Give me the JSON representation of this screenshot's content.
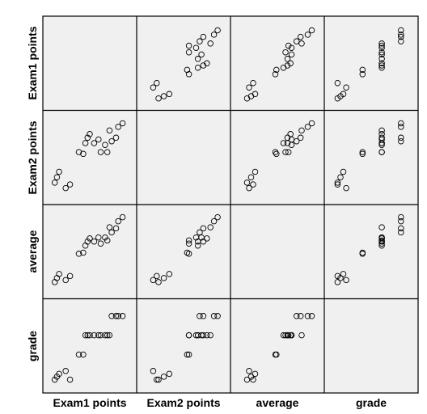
{
  "chart_data": {
    "type": "scatter",
    "variables": [
      "Exam1 points",
      "Exam2 points",
      "average",
      "grade"
    ],
    "records": [
      {
        "Exam1 points": 65,
        "Exam2 points": 60,
        "average": 62.5,
        "grade": 0.7
      },
      {
        "Exam1 points": 66,
        "Exam2 points": 63,
        "average": 64.5,
        "grade": 0.85
      },
      {
        "Exam1 points": 67,
        "Exam2 points": 66,
        "average": 66.5,
        "grade": 1.0
      },
      {
        "Exam1 points": 70,
        "Exam2 points": 57,
        "average": 63.5,
        "grade": 1.15
      },
      {
        "Exam1 points": 72,
        "Exam2 points": 59,
        "average": 65.5,
        "grade": 0.7
      },
      {
        "Exam1 points": 76,
        "Exam2 points": 77,
        "average": 76.5,
        "grade": 2.0
      },
      {
        "Exam1 points": 78,
        "Exam2 points": 76,
        "average": 77,
        "grade": 2.0
      },
      {
        "Exam1 points": 79,
        "Exam2 points": 82,
        "average": 80.5,
        "grade": 3.0
      },
      {
        "Exam1 points": 80,
        "Exam2 points": 85,
        "average": 82.5,
        "grade": 3.0
      },
      {
        "Exam1 points": 81,
        "Exam2 points": 87,
        "average": 84,
        "grade": 3.0
      },
      {
        "Exam1 points": 83,
        "Exam2 points": 82,
        "average": 82.5,
        "grade": 3.0
      },
      {
        "Exam1 points": 85,
        "Exam2 points": 84,
        "average": 84.5,
        "grade": 3.0
      },
      {
        "Exam1 points": 86,
        "Exam2 points": 77,
        "average": 81.5,
        "grade": 3.0
      },
      {
        "Exam1 points": 88,
        "Exam2 points": 81,
        "average": 84.5,
        "grade": 3.0
      },
      {
        "Exam1 points": 89,
        "Exam2 points": 77,
        "average": 83,
        "grade": 3.0
      },
      {
        "Exam1 points": 90,
        "Exam2 points": 89,
        "average": 89.5,
        "grade": 3.0
      },
      {
        "Exam1 points": 91,
        "Exam2 points": 83,
        "average": 87,
        "grade": 4.0
      },
      {
        "Exam1 points": 93,
        "Exam2 points": 85,
        "average": 89,
        "grade": 4.0
      },
      {
        "Exam1 points": 94,
        "Exam2 points": 91,
        "average": 92.5,
        "grade": 4.0
      },
      {
        "Exam1 points": 96,
        "Exam2 points": 93,
        "average": 94.5,
        "grade": 4.0
      }
    ],
    "ranges": {
      "Exam1 points": [
        63,
        99
      ],
      "Exam2 points": [
        52,
        96
      ],
      "average": [
        58,
        97
      ],
      "grade": [
        0.4,
        4.5
      ]
    },
    "grid": false,
    "legend": "none",
    "colors": {
      "cell_background": "#f0f0f0",
      "frame": "#000000",
      "marker_stroke": "#000000",
      "marker_fill": "none"
    },
    "xlabels": [
      "Exam1 points",
      "Exam2 points",
      "average",
      "grade"
    ],
    "ylabels": [
      "Exam1 points",
      "Exam2 points",
      "average",
      "grade"
    ]
  }
}
